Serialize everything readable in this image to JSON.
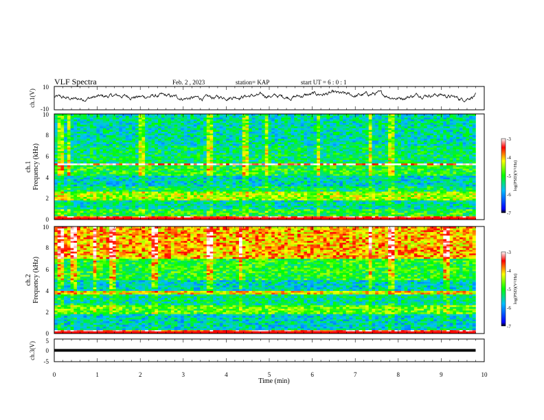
{
  "header": {
    "title": "VLF Spectra",
    "date": "Feb. 2 , 2023",
    "station": "station= KAP",
    "start": "start UT = 6 : 0 : 1"
  },
  "chart_data": [
    {
      "type": "line",
      "ylabel": "ch.1(V)",
      "ylim": [
        -10,
        10
      ],
      "yticks": [
        "10",
        "-10"
      ],
      "x_range_min": [
        0,
        10
      ],
      "data_end_min": 9.8,
      "trace_color": "#000000",
      "approx_level_v": [
        [
          0,
          1
        ],
        [
          0.5,
          -1
        ],
        [
          1,
          1
        ],
        [
          1.5,
          2
        ],
        [
          2,
          1
        ],
        [
          2.5,
          2
        ],
        [
          3,
          0
        ],
        [
          3.5,
          0
        ],
        [
          4,
          1
        ],
        [
          4.5,
          2
        ],
        [
          5,
          2
        ],
        [
          5.5,
          1
        ],
        [
          6,
          3
        ],
        [
          6.5,
          4
        ],
        [
          7,
          2
        ],
        [
          7.5,
          4
        ],
        [
          8,
          0
        ],
        [
          8.5,
          3
        ],
        [
          9,
          3
        ],
        [
          9.5,
          -1
        ],
        [
          9.8,
          3
        ]
      ]
    },
    {
      "type": "heatmap",
      "ylabel": "ch.1\nFrequency (kHz)",
      "ylim": [
        0,
        10
      ],
      "yticks": [
        "0",
        "2",
        "4",
        "6",
        "8",
        "10"
      ],
      "x_range_min": [
        0,
        10
      ],
      "data_end_min": 9.8,
      "colorbar": {
        "label": "log(PSD)(V²/Hz)",
        "range": [
          -7,
          -3
        ],
        "ticks": [
          "-3",
          "-4",
          "-5",
          "-6",
          "-7"
        ]
      },
      "band_levels": [
        [
          0,
          0.3,
          -3.5
        ],
        [
          0.3,
          1.0,
          -5.0
        ],
        [
          1.0,
          1.8,
          -5.5
        ],
        [
          1.8,
          2.6,
          -4.5
        ],
        [
          2.6,
          3.2,
          -5.2
        ],
        [
          3.2,
          4.2,
          -5.6
        ],
        [
          4.2,
          5.2,
          -5.0
        ],
        [
          5.2,
          5.4,
          -3.2
        ],
        [
          5.4,
          7.0,
          -5.3
        ],
        [
          7.0,
          10.0,
          -5.5
        ]
      ],
      "approx_vertical_bursts_min": [
        0.1,
        0.3,
        2.0,
        3.6,
        4.4,
        4.9,
        6.1,
        7.3,
        7.8
      ]
    },
    {
      "type": "heatmap",
      "ylabel": "ch.2\nFrequency (kHz)",
      "ylim": [
        0,
        10
      ],
      "yticks": [
        "0",
        "2",
        "4",
        "6",
        "8",
        "10"
      ],
      "x_range_min": [
        0,
        10
      ],
      "data_end_min": 9.8,
      "colorbar": {
        "label": "log(PSD)(V²/Hz)",
        "range": [
          -7,
          -3
        ],
        "ticks": [
          "-3",
          "-4",
          "-5",
          "-6",
          "-7"
        ]
      },
      "band_levels": [
        [
          0,
          0.3,
          -3.5
        ],
        [
          0.3,
          1.8,
          -5.6
        ],
        [
          1.8,
          2.6,
          -4.8
        ],
        [
          2.6,
          3.6,
          -5.4
        ],
        [
          3.6,
          4.0,
          -4.2
        ],
        [
          4.0,
          5.0,
          -5.6
        ],
        [
          5.0,
          7.0,
          -5.0
        ],
        [
          7.0,
          10.0,
          -4.0
        ]
      ],
      "approx_vertical_bursts_min": [
        0.1,
        0.4,
        0.9,
        1.3,
        2.3,
        3.6,
        4.3,
        7.3,
        7.8,
        9.1
      ]
    },
    {
      "type": "line",
      "ylabel": "ch.3(V)",
      "ylim": [
        -5,
        5
      ],
      "yticks": [
        "5",
        "0",
        "-5"
      ],
      "x_range_min": [
        0,
        10
      ],
      "data_end_min": 9.8,
      "trace_color": "#000000",
      "approx_level_v": [
        [
          0,
          0
        ],
        [
          9.8,
          0
        ]
      ],
      "approx_band_width_v": 1.2
    }
  ],
  "x_axis": {
    "label": "Time (min)",
    "ticks": [
      "0",
      "1",
      "2",
      "3",
      "4",
      "5",
      "6",
      "7",
      "8",
      "9",
      "10"
    ],
    "range": [
      0,
      10
    ]
  }
}
